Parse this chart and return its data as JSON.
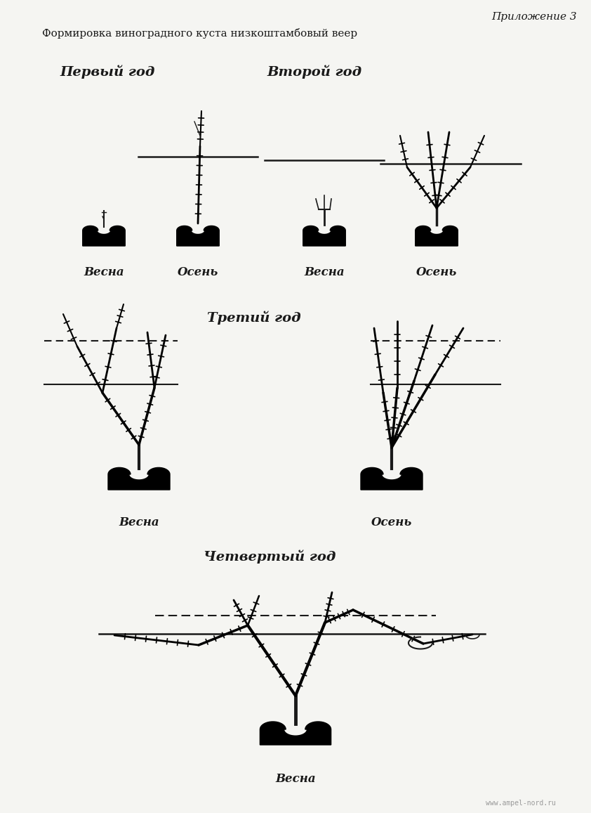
{
  "title_right": "Приложение 3",
  "subtitle": "Формировка виноградного куста низкоштамбовый веер",
  "header1": "Первый год",
  "header2": "Второй год",
  "header3": "Третий год",
  "header4": "Четвертый год",
  "label_vesna": "Весна",
  "label_osen": "Осень",
  "watermark": "www.ampel-nord.ru",
  "bg_color": "#f5f5f2",
  "line_color": "#1a1a1a",
  "page_width": 8.42,
  "page_height": 11.57
}
